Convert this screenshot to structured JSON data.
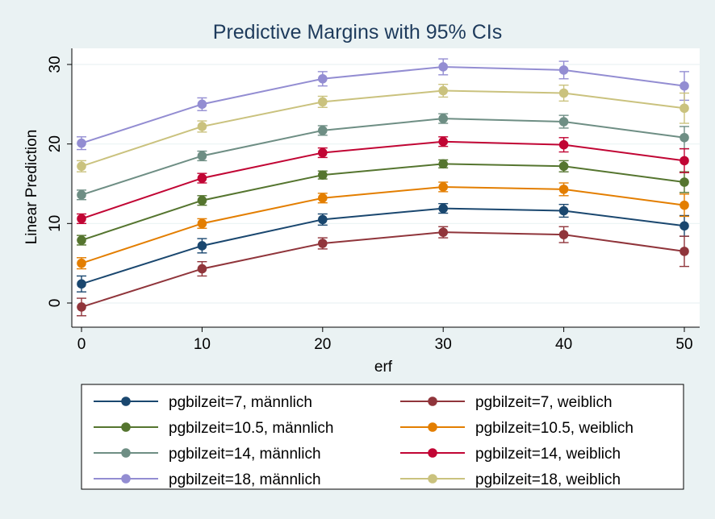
{
  "chart_data": {
    "type": "line",
    "title": "Predictive Margins with 95% CIs",
    "xlabel": "erf",
    "ylabel": "Linear Prediction",
    "x": [
      0,
      10,
      20,
      30,
      40,
      50
    ],
    "xticks": [
      0,
      10,
      20,
      30,
      40,
      50
    ],
    "yticks": [
      0,
      10,
      20,
      30
    ],
    "xlim": [
      0,
      50
    ],
    "ylim": [
      -2.5,
      31.5
    ],
    "grid": true,
    "legend_position": "bottom",
    "colors": {
      "background": "#eaf2f3",
      "plot_background": "#ffffff",
      "gridline": "#eaf2f3"
    },
    "series": [
      {
        "name": "pgbilzeit=7, männlich",
        "color": "#1a476f",
        "values": [
          2.4,
          7.2,
          10.5,
          11.9,
          11.6,
          9.7
        ],
        "ci": [
          [
            1.4,
            3.4
          ],
          [
            6.3,
            8.1
          ],
          [
            9.8,
            11.2
          ],
          [
            11.3,
            12.5
          ],
          [
            10.8,
            12.4
          ],
          [
            8.4,
            11.0
          ]
        ]
      },
      {
        "name": "pgbilzeit=7, weiblich",
        "color": "#90353b",
        "values": [
          -0.5,
          4.3,
          7.5,
          8.9,
          8.6,
          6.5
        ],
        "ci": [
          [
            -1.6,
            0.6
          ],
          [
            3.4,
            5.2
          ],
          [
            6.8,
            8.2
          ],
          [
            8.2,
            9.6
          ],
          [
            7.6,
            9.6
          ],
          [
            4.6,
            8.4
          ]
        ]
      },
      {
        "name": "pgbilzeit=10.5, männlich",
        "color": "#55752f",
        "values": [
          7.9,
          12.9,
          16.1,
          17.5,
          17.2,
          15.2
        ],
        "ci": [
          [
            7.3,
            8.5
          ],
          [
            12.3,
            13.5
          ],
          [
            15.6,
            16.6
          ],
          [
            17.0,
            18.0
          ],
          [
            16.5,
            17.9
          ],
          [
            13.9,
            16.5
          ]
        ]
      },
      {
        "name": "pgbilzeit=10.5, weiblich",
        "color": "#e37e00",
        "values": [
          5.0,
          10.0,
          13.2,
          14.6,
          14.3,
          12.3
        ],
        "ci": [
          [
            4.3,
            5.7
          ],
          [
            9.4,
            10.6
          ],
          [
            12.6,
            13.8
          ],
          [
            14.0,
            15.2
          ],
          [
            13.5,
            15.1
          ],
          [
            10.9,
            13.7
          ]
        ]
      },
      {
        "name": "pgbilzeit=14, männlich",
        "color": "#6e8e84",
        "values": [
          13.6,
          18.5,
          21.7,
          23.2,
          22.8,
          20.8
        ],
        "ci": [
          [
            13.0,
            14.2
          ],
          [
            17.9,
            19.1
          ],
          [
            21.1,
            22.3
          ],
          [
            22.6,
            23.8
          ],
          [
            22.0,
            23.6
          ],
          [
            19.4,
            22.2
          ]
        ]
      },
      {
        "name": "pgbilzeit=14, weiblich",
        "color": "#c10534",
        "values": [
          10.6,
          15.7,
          18.9,
          20.3,
          19.9,
          17.9
        ],
        "ci": [
          [
            10.0,
            11.2
          ],
          [
            15.1,
            16.3
          ],
          [
            18.3,
            19.5
          ],
          [
            19.7,
            20.9
          ],
          [
            19.0,
            20.8
          ],
          [
            16.4,
            19.4
          ]
        ]
      },
      {
        "name": "pgbilzeit=18, männlich",
        "color": "#938dd2",
        "values": [
          20.1,
          25.0,
          28.2,
          29.7,
          29.3,
          27.3
        ],
        "ci": [
          [
            19.3,
            20.9
          ],
          [
            24.2,
            25.8
          ],
          [
            27.3,
            29.1
          ],
          [
            28.7,
            30.7
          ],
          [
            28.2,
            30.4
          ],
          [
            25.5,
            29.1
          ]
        ]
      },
      {
        "name": "pgbilzeit=18, weiblich",
        "color": "#cac27e",
        "values": [
          17.2,
          22.2,
          25.3,
          26.7,
          26.4,
          24.5
        ],
        "ci": [
          [
            16.5,
            17.9
          ],
          [
            21.5,
            22.9
          ],
          [
            24.6,
            26.0
          ],
          [
            25.9,
            27.5
          ],
          [
            25.4,
            27.4
          ],
          [
            22.6,
            26.4
          ]
        ]
      }
    ]
  }
}
